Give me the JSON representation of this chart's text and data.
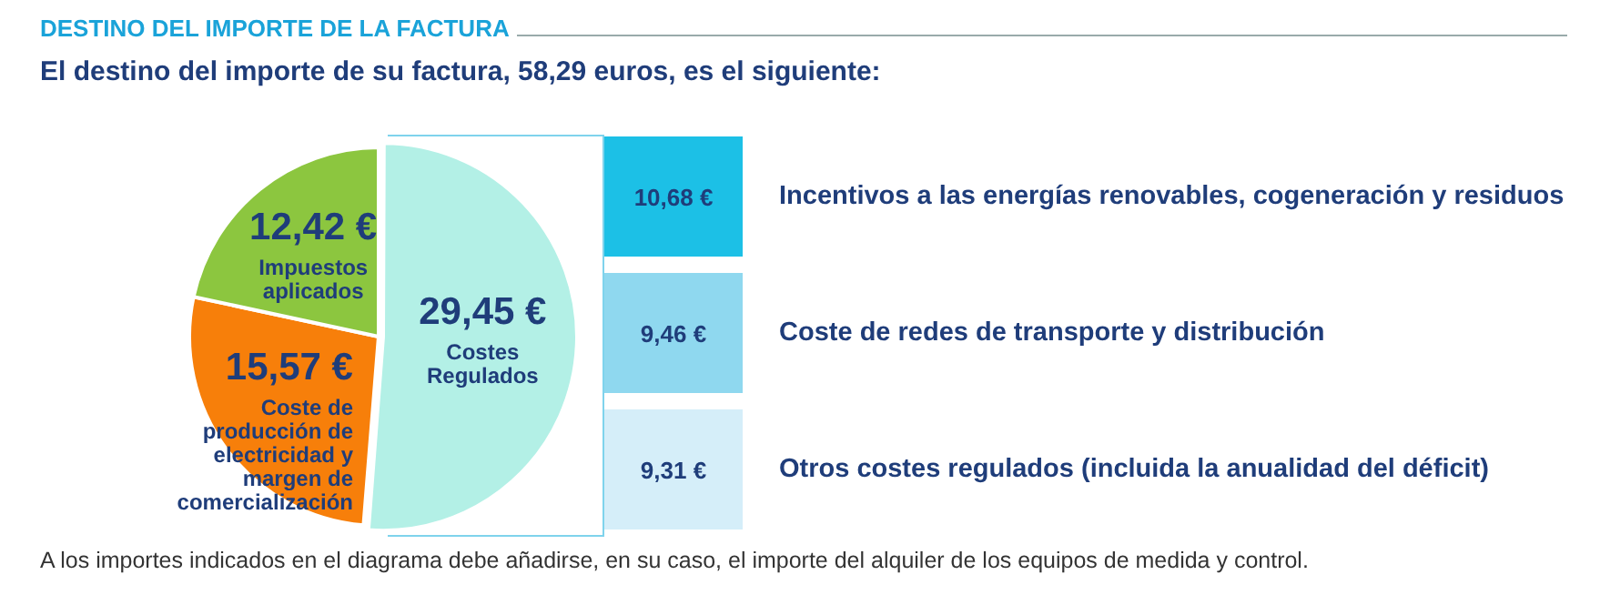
{
  "chart_data": [
    {
      "type": "pie",
      "title": "DESTINO DEL IMPORTE DE LA FACTURA",
      "subtitle": "El destino del importe de su factura, 58,29 euros, es el siguiente:",
      "categories": [
        "Costes Regulados",
        "Coste de producción de electricidad y margen de comercialización",
        "Impuestos aplicados"
      ],
      "values": [
        29.45,
        15.57,
        12.42
      ],
      "value_labels": [
        "29,45 €",
        "15,57 €",
        "12,42 €"
      ],
      "colors": [
        "#b3f0e6",
        "#f77f0a",
        "#8cc63f"
      ],
      "legend": false
    },
    {
      "type": "other",
      "categories": [
        "Incentivos a las energías renovables, cogeneración y residuos",
        "Coste de redes de transporte y distribución",
        "Otros costes regulados (incluida la anualidad del déficit)"
      ],
      "values": [
        10.68,
        9.46,
        9.31
      ],
      "value_labels": [
        "10,68 €",
        "9,46 €",
        "9,31 €"
      ],
      "colors": [
        "#1cc0e6",
        "#8fd8ef",
        "#d5eef9"
      ],
      "annotations": [
        "A los importes indicados en el diagrama debe añadirse, en su caso, el importe del alquiler de los equipos de medida y control."
      ]
    }
  ]
}
